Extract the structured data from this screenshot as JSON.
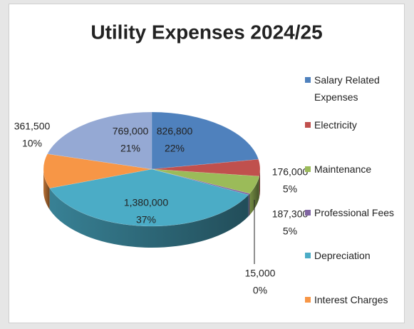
{
  "chart_data": {
    "type": "pie3d",
    "title": "Utility Expenses 2024/25",
    "categories": [
      "Salary Related Expenses",
      "Electricity",
      "Maintenance",
      "Professional Fees",
      "Depreciation",
      "Interest Charges",
      null
    ],
    "values": [
      826800,
      176000,
      187300,
      15000,
      1380000,
      361500,
      769000
    ],
    "value_labels": [
      "826,800",
      "176,000",
      "187,300",
      "15,000",
      "1,380,000",
      "361,500",
      "769,000"
    ],
    "percent_labels": [
      "22%",
      "5%",
      "5%",
      "0%",
      "37%",
      "10%",
      "21%"
    ],
    "colors": [
      "#4f81bd",
      "#c0504d",
      "#9bbb59",
      "#8064a2",
      "#4bacc6",
      "#f79646",
      "#95a9d4"
    ],
    "legend": "right"
  }
}
